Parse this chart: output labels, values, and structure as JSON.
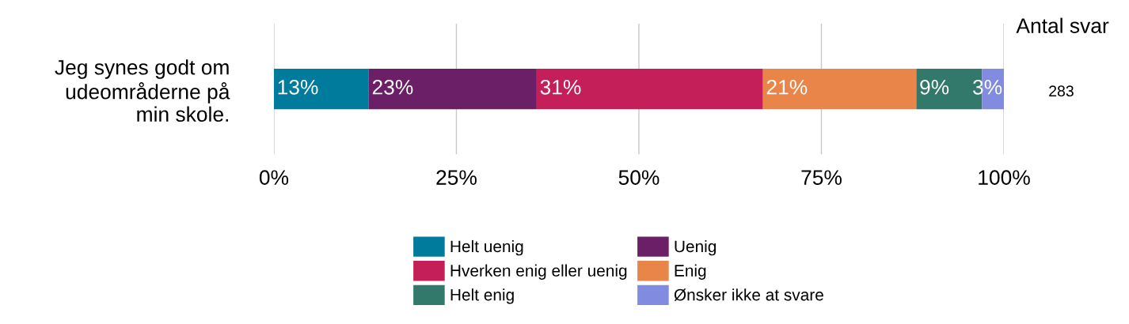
{
  "chart_data": {
    "type": "bar",
    "orientation": "horizontal",
    "stacked": true,
    "categories": [
      "Jeg synes godt om\nudeområderne på\nmin skole."
    ],
    "series": [
      {
        "name": "Helt uenig",
        "color": "#007b9b",
        "values": [
          13
        ],
        "value_labels": [
          "13%"
        ]
      },
      {
        "name": "Uenig",
        "color": "#6a1f67",
        "values": [
          23
        ],
        "value_labels": [
          "23%"
        ]
      },
      {
        "name": "Hverken enig eller uenig",
        "color": "#c51f5a",
        "values": [
          31
        ],
        "value_labels": [
          "31%"
        ]
      },
      {
        "name": "Enig",
        "color": "#ea8549",
        "values": [
          21
        ],
        "value_labels": [
          "21%"
        ]
      },
      {
        "name": "Helt enig",
        "color": "#32786b",
        "values": [
          9
        ],
        "value_labels": [
          "9%"
        ]
      },
      {
        "name": "Ønsker ikke at svare",
        "color": "#818ce0",
        "values": [
          3
        ],
        "value_labels": [
          "3%"
        ]
      }
    ],
    "xlim": [
      0,
      100
    ],
    "xticks": [
      {
        "value": 0,
        "label": "0%"
      },
      {
        "value": 25,
        "label": "25%"
      },
      {
        "value": 50,
        "label": "50%"
      },
      {
        "value": 75,
        "label": "75%"
      },
      {
        "value": 100,
        "label": "100%"
      }
    ],
    "grid": "x",
    "legend": "bottom",
    "annotations": [
      "Antal svar",
      "283"
    ]
  }
}
